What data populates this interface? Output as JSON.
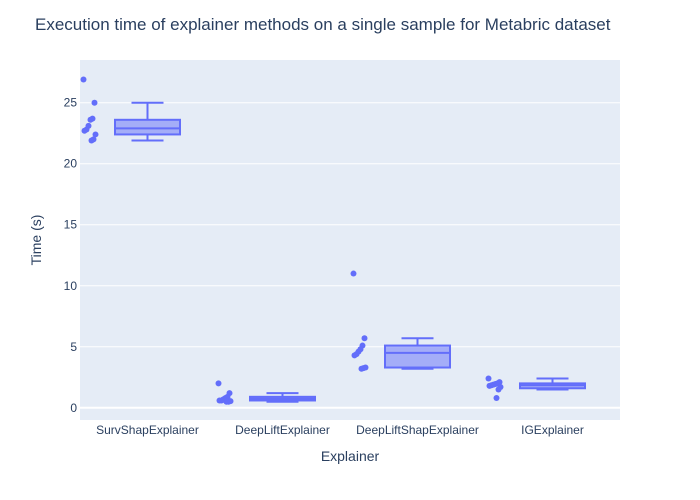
{
  "chart_data": {
    "type": "box",
    "title": "Execution time of explainer methods on a single sample for Metabric dataset",
    "xlabel": "Explainer",
    "ylabel": "Time (s)",
    "ylim": [
      -1,
      28.5
    ],
    "yticks": [
      0,
      5,
      10,
      15,
      20,
      25
    ],
    "grid": true,
    "colors": {
      "plot_bg": "#e5ecf6",
      "box": "#636efa",
      "box_fill": "rgba(99,110,250,0.5)",
      "grid": "#ffffff",
      "text": "#2a3f5f"
    },
    "categories": [
      "SurvShapExplainer",
      "DeepLiftExplainer",
      "DeepLiftShapExplainer",
      "IGExplainer"
    ],
    "series": [
      {
        "category": "SurvShapExplainer",
        "min": 21.9,
        "q1": 22.4,
        "median": 22.9,
        "q3": 23.6,
        "max": 25.0,
        "points": [
          26.9,
          25.0,
          23.7,
          23.6,
          23.1,
          22.8,
          22.7,
          22.4,
          22.0,
          21.9
        ]
      },
      {
        "category": "DeepLiftExplainer",
        "min": 0.5,
        "q1": 0.6,
        "median": 0.75,
        "q3": 0.9,
        "max": 1.2,
        "points": [
          2.0,
          1.2,
          0.9,
          0.8,
          0.7,
          0.6,
          0.6,
          0.55,
          0.5,
          0.5
        ]
      },
      {
        "category": "DeepLiftShapExplainer",
        "min": 3.2,
        "q1": 3.3,
        "median": 4.5,
        "q3": 5.1,
        "max": 5.7,
        "points": [
          11.0,
          5.7,
          5.1,
          4.8,
          4.6,
          4.4,
          4.3,
          3.3,
          3.25,
          3.2
        ]
      },
      {
        "category": "IGExplainer",
        "min": 1.5,
        "q1": 1.6,
        "median": 1.85,
        "q3": 2.0,
        "max": 2.4,
        "points": [
          2.4,
          2.1,
          2.0,
          1.95,
          1.9,
          1.85,
          1.8,
          1.7,
          1.5,
          0.8
        ]
      }
    ]
  }
}
